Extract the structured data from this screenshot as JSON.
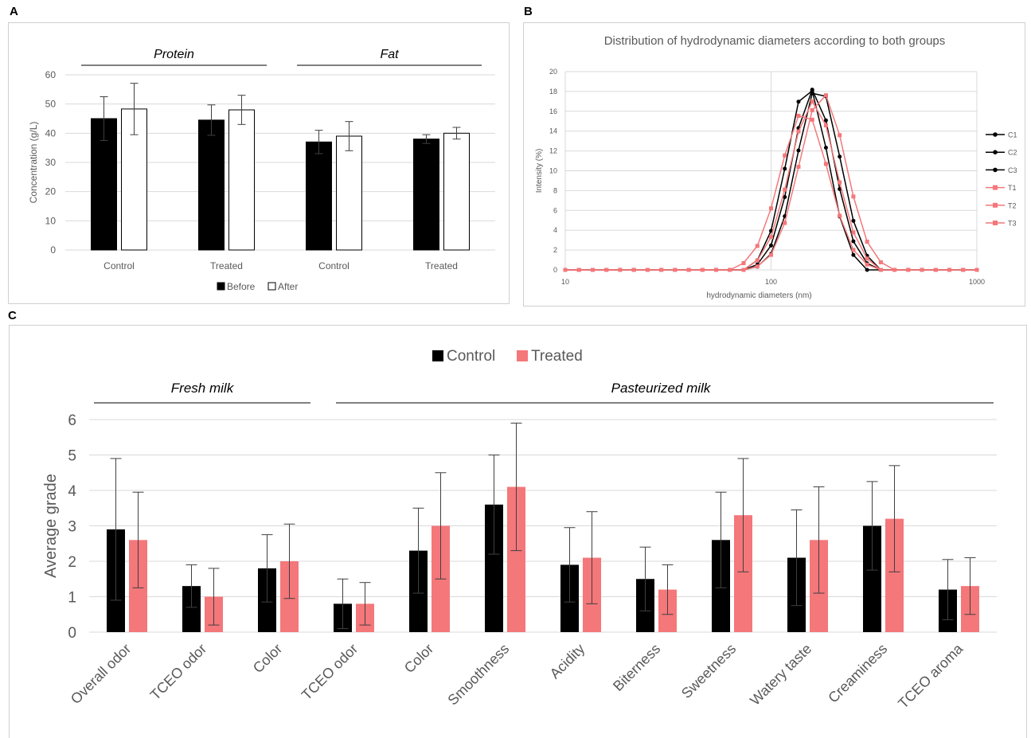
{
  "panels": {
    "a": "A",
    "b": "B",
    "c": "C"
  },
  "colors": {
    "black": "#000000",
    "pink": "#f4777a",
    "white": "#ffffff",
    "grid": "#d9d9d9",
    "text": "#595959"
  },
  "chart_data": [
    {
      "id": "A",
      "type": "bar",
      "title": "",
      "group_labels": [
        "Protein",
        "Fat"
      ],
      "categories": [
        "Control",
        "Treated",
        "Control",
        "Treated"
      ],
      "ylabel": "Concentration (g/L)",
      "xlabel": "",
      "ylim": [
        0,
        60
      ],
      "yticks": [
        0,
        10,
        20,
        30,
        40,
        50,
        60
      ],
      "grid": true,
      "legend": "bottom",
      "series": [
        {
          "name": "Before",
          "color": "#000000",
          "values": [
            45,
            44.5,
            37,
            38
          ],
          "errors": [
            7.5,
            5.2,
            4,
            1.5
          ]
        },
        {
          "name": "After",
          "color": "#ffffff",
          "values": [
            48.3,
            48,
            39,
            40
          ],
          "errors": [
            8.8,
            5,
            5,
            2
          ]
        }
      ]
    },
    {
      "id": "B",
      "type": "line",
      "title": "Distribution of hydrodynamic diameters according to both groups",
      "xlabel": "hydrodynamic diameters (nm)",
      "ylabel": "Intensity (%)",
      "xscale": "log",
      "xlim": [
        10,
        1000
      ],
      "ylim": [
        0,
        20
      ],
      "xticks": [
        "10",
        "100",
        "1000"
      ],
      "yticks": [
        0,
        2,
        4,
        6,
        8,
        10,
        12,
        14,
        16,
        18,
        20
      ],
      "grid": true,
      "legend": "right",
      "series": [
        {
          "name": "C1",
          "color": "#000000",
          "marker": "circle",
          "mu": 150,
          "sigma": 0.23,
          "peak": 18.6
        },
        {
          "name": "C2",
          "color": "#000000",
          "marker": "circle",
          "mu": 170,
          "sigma": 0.24,
          "peak": 18.6
        },
        {
          "name": "C3",
          "color": "#000000",
          "marker": "circle",
          "mu": 160,
          "sigma": 0.235,
          "peak": 18.2
        },
        {
          "name": "T1",
          "color": "#f4777a",
          "marker": "square",
          "mu": 145,
          "sigma": 0.27,
          "peak": 16.0
        },
        {
          "name": "T2",
          "color": "#f4777a",
          "marker": "square",
          "mu": 160,
          "sigma": 0.26,
          "peak": 17.0
        },
        {
          "name": "T3",
          "color": "#f4777a",
          "marker": "square",
          "mu": 178,
          "sigma": 0.26,
          "peak": 17.8
        }
      ]
    },
    {
      "id": "C",
      "type": "bar",
      "title": "",
      "group_labels": [
        "Fresh milk",
        "Pasteurized milk"
      ],
      "categories": [
        "Overall odor",
        "TCEO odor",
        "Color",
        "TCEO odor",
        "Color",
        "Smoothness",
        "Acidity",
        "Biterness",
        "Sweetness",
        "Watery taste",
        "Creaminess",
        "TCEO aroma"
      ],
      "ylabel": "Average grade",
      "xlabel": "",
      "ylim": [
        0,
        6
      ],
      "yticks": [
        0,
        1,
        2,
        3,
        4,
        5,
        6
      ],
      "grid": true,
      "legend": "top",
      "series": [
        {
          "name": "Control",
          "color": "#000000",
          "values": [
            2.9,
            1.3,
            1.8,
            0.8,
            2.3,
            3.6,
            1.9,
            1.5,
            2.6,
            2.1,
            3.0,
            1.2
          ],
          "errors": [
            2.0,
            0.6,
            0.95,
            0.7,
            1.2,
            1.4,
            1.05,
            0.9,
            1.35,
            1.35,
            1.25,
            0.85
          ]
        },
        {
          "name": "Treated",
          "color": "#f4777a",
          "values": [
            2.6,
            1.0,
            2.0,
            0.8,
            3.0,
            4.1,
            2.1,
            1.2,
            3.3,
            2.6,
            3.2,
            1.3
          ],
          "errors": [
            1.35,
            0.8,
            1.05,
            0.6,
            1.5,
            1.8,
            1.3,
            0.7,
            1.6,
            1.5,
            1.5,
            0.8
          ]
        }
      ]
    }
  ]
}
